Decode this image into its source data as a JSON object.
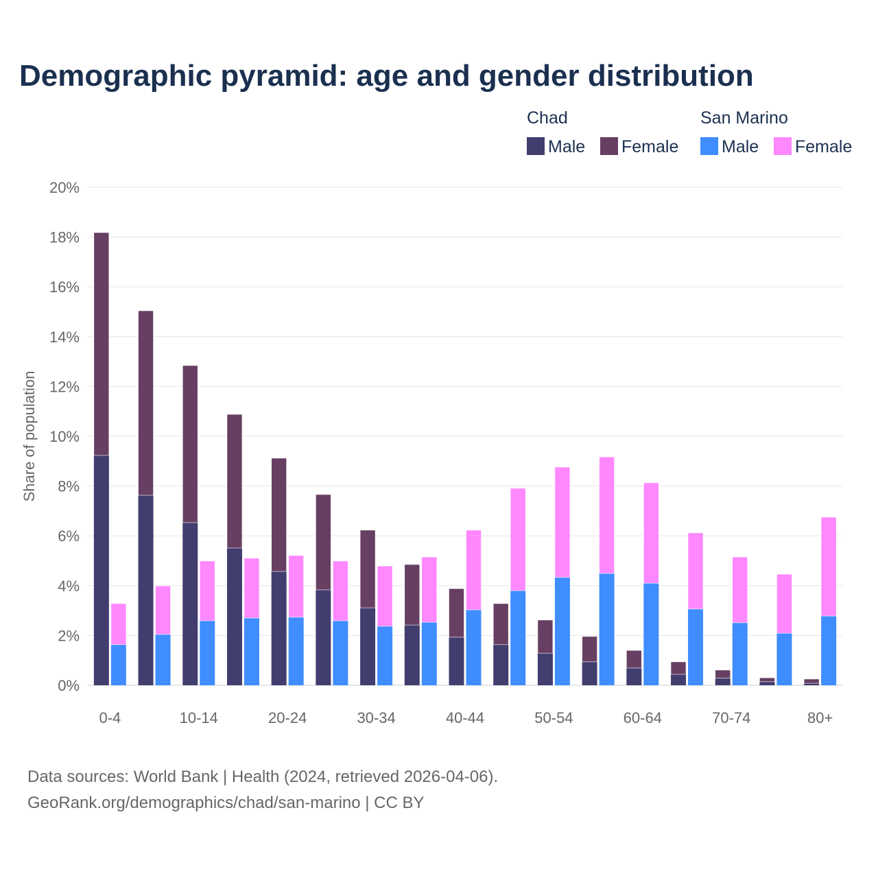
{
  "chart_data": {
    "type": "bar",
    "title": "Demographic pyramid: age and gender distribution",
    "ylabel": "Share of population",
    "ylim": [
      0,
      20
    ],
    "y_ticks": [
      "0%",
      "2%",
      "4%",
      "6%",
      "8%",
      "10%",
      "12%",
      "14%",
      "16%",
      "18%",
      "20%"
    ],
    "x_tick_labels": [
      "0-4",
      "10-14",
      "20-24",
      "30-34",
      "40-44",
      "50-54",
      "60-64",
      "70-74",
      "80+"
    ],
    "group_count": 17,
    "legend": {
      "groups": [
        {
          "name": "Chad",
          "entries": [
            {
              "label": "Male",
              "color": "#423d6f"
            },
            {
              "label": "Female",
              "color": "#673f62"
            }
          ]
        },
        {
          "name": "San Marino",
          "entries": [
            {
              "label": "Male",
              "color": "#3f8dff"
            },
            {
              "label": "Female",
              "color": "#ff88ff"
            }
          ]
        }
      ],
      "placement": "top-right"
    },
    "series": [
      {
        "country": "Chad",
        "male": [
          9.23,
          7.63,
          6.53,
          5.51,
          4.57,
          3.83,
          3.11,
          2.42,
          1.93,
          1.63,
          1.29,
          0.94,
          0.69,
          0.44,
          0.28,
          0.14,
          0.08
        ],
        "female": [
          8.95,
          7.41,
          6.31,
          5.37,
          4.55,
          3.83,
          3.12,
          2.43,
          1.95,
          1.65,
          1.33,
          1.02,
          0.71,
          0.5,
          0.33,
          0.16,
          0.17
        ]
      },
      {
        "country": "San Marino",
        "male": [
          1.63,
          2.04,
          2.59,
          2.7,
          2.73,
          2.59,
          2.37,
          2.53,
          3.03,
          3.8,
          4.33,
          4.49,
          4.1,
          3.06,
          2.51,
          2.09,
          2.78
        ],
        "female": [
          1.65,
          1.95,
          2.4,
          2.4,
          2.48,
          2.4,
          2.42,
          2.62,
          3.2,
          4.11,
          4.43,
          4.68,
          4.03,
          3.06,
          2.64,
          2.37,
          3.97
        ]
      }
    ]
  },
  "footer": {
    "source": "Data sources: World Bank | Health (2024, retrieved 2026-04-06).",
    "credit": "GeoRank.org/demographics/chad/san-marino | CC BY"
  }
}
